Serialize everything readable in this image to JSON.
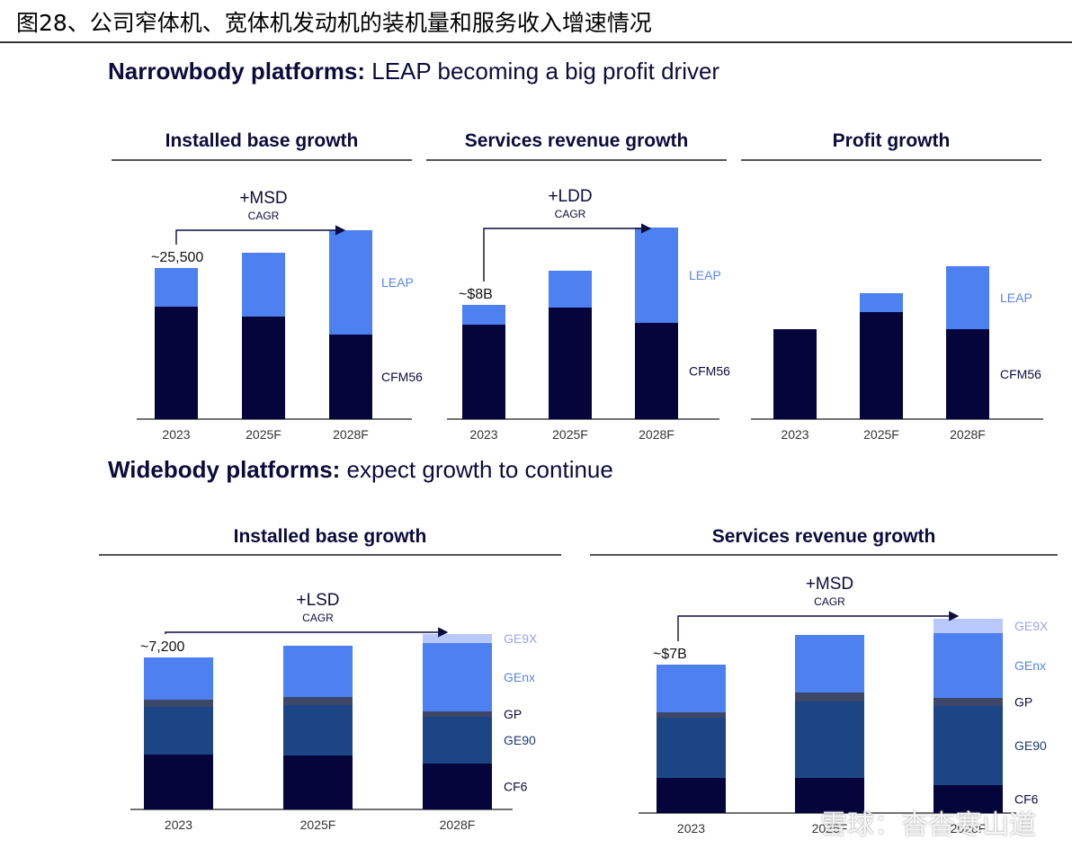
{
  "figure_title": "图28、公司窄体机、宽体机发动机的装机量和服务收入增速情况",
  "sections": {
    "narrow": {
      "bold": "Narrowbody platforms:",
      "rest": " LEAP becoming a big profit driver"
    },
    "wide": {
      "bold": "Widebody platforms:",
      "rest": " expect growth to continue"
    }
  },
  "watermark": "雪球：杳杳寒山道",
  "colors": {
    "CFM56": "#05053b",
    "LEAP": "#4d80f0",
    "CF6": "#05053b",
    "GE90": "#1c4585",
    "GP": "#3d4768",
    "GEnx": "#4d80f0",
    "GE9X": "#b9c8fa"
  },
  "chart_data": [
    {
      "type": "bar",
      "stacked": true,
      "title": "Installed base growth",
      "categories": [
        "2023",
        "2025F",
        "2028F"
      ],
      "series": [
        {
          "name": "CFM56",
          "values": [
            125,
            114,
            94
          ]
        },
        {
          "name": "LEAP",
          "values": [
            43,
            71,
            116
          ]
        }
      ],
      "ylim": [
        0,
        215
      ],
      "annotations": {
        "first_label": "~25,500",
        "growth": "+MSD",
        "growth_sub": "CAGR"
      }
    },
    {
      "type": "bar",
      "stacked": true,
      "title": "Services revenue growth",
      "categories": [
        "2023",
        "2025F",
        "2028F"
      ],
      "series": [
        {
          "name": "CFM56",
          "values": [
            105,
            124,
            107
          ]
        },
        {
          "name": "LEAP",
          "values": [
            22,
            41,
            106
          ]
        }
      ],
      "ylim": [
        0,
        215
      ],
      "annotations": {
        "first_label": "~$8B",
        "growth": "+LDD",
        "growth_sub": "CAGR"
      }
    },
    {
      "type": "bar",
      "stacked": true,
      "title": "Profit growth",
      "categories": [
        "2023",
        "2025F",
        "2028F"
      ],
      "series": [
        {
          "name": "CFM56",
          "values": [
            100,
            119,
            100
          ]
        },
        {
          "name": "LEAP",
          "values": [
            0,
            21,
            70
          ]
        }
      ],
      "ylim": [
        0,
        215
      ],
      "annotations": {}
    },
    {
      "type": "bar",
      "stacked": true,
      "title": "Installed base growth",
      "categories": [
        "2023",
        "2025F",
        "2028F"
      ],
      "series": [
        {
          "name": "CF6",
          "values": [
            61,
            60,
            51
          ]
        },
        {
          "name": "GE90",
          "values": [
            53,
            56,
            52
          ]
        },
        {
          "name": "GP",
          "values": [
            8,
            9,
            6
          ]
        },
        {
          "name": "GEnx",
          "values": [
            47,
            57,
            76
          ]
        },
        {
          "name": "GE9X",
          "values": [
            0,
            0,
            10
          ]
        }
      ],
      "ylim": [
        0,
        215
      ],
      "annotations": {
        "first_label": "~7,200",
        "growth": "+LSD",
        "growth_sub": "CAGR"
      }
    },
    {
      "type": "bar",
      "stacked": true,
      "title": "Services revenue growth",
      "categories": [
        "2023",
        "2025F",
        "2028F"
      ],
      "series": [
        {
          "name": "CF6",
          "values": [
            39,
            39,
            31
          ]
        },
        {
          "name": "GE90",
          "values": [
            67,
            85,
            88
          ]
        },
        {
          "name": "GP",
          "values": [
            6,
            10,
            9
          ]
        },
        {
          "name": "GEnx",
          "values": [
            53,
            64,
            72
          ]
        },
        {
          "name": "GE9X",
          "values": [
            0,
            0,
            16
          ]
        }
      ],
      "ylim": [
        0,
        215
      ],
      "annotations": {
        "first_label": "~$7B",
        "growth": "+MSD",
        "growth_sub": "CAGR"
      }
    }
  ]
}
